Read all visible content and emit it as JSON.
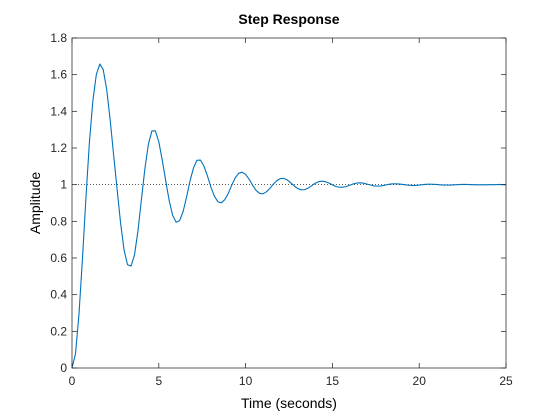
{
  "chart_data": {
    "type": "line",
    "title": "Step Response",
    "xlabel": "Time (seconds)",
    "ylabel": "Amplitude",
    "xlim": [
      0,
      25
    ],
    "ylim": [
      0,
      1.8
    ],
    "xticks": [
      0,
      5,
      10,
      15,
      20,
      25
    ],
    "xtick_labels": [
      "0",
      "5",
      "10",
      "15",
      "20",
      "25"
    ],
    "yticks": [
      0,
      0.2,
      0.4,
      0.6,
      0.8,
      1,
      1.2,
      1.4,
      1.6,
      1.8
    ],
    "ytick_labels": [
      "0",
      "0.2",
      "0.4",
      "0.6",
      "0.8",
      "1",
      "1.2",
      "1.4",
      "1.6",
      "1.8"
    ],
    "grid": false,
    "reference_line": {
      "y": 1,
      "style": "dotted"
    },
    "series": [
      {
        "color": "#0072BD",
        "x": [
          0,
          0.2,
          0.4,
          0.6,
          0.8,
          1.0,
          1.2,
          1.4,
          1.6,
          1.8,
          2.0,
          2.2,
          2.4,
          2.6,
          2.8,
          3.0,
          3.2,
          3.4,
          3.6,
          3.8,
          4.0,
          4.2,
          4.4,
          4.6,
          4.8,
          5.0,
          5.2,
          5.4,
          5.6,
          5.8,
          6.0,
          6.2,
          6.4,
          6.6,
          6.8,
          7.0,
          7.2,
          7.4,
          7.6,
          7.8,
          8.0,
          8.2,
          8.4,
          8.6,
          8.8,
          9.0,
          9.2,
          9.4,
          9.6,
          9.8,
          10.0,
          10.2,
          10.4,
          10.6,
          10.8,
          11.0,
          11.2,
          11.4,
          11.6,
          11.8,
          12.0,
          12.2,
          12.4,
          12.6,
          12.8,
          13.0,
          13.2,
          13.4,
          13.6,
          13.8,
          14.0,
          14.2,
          14.4,
          14.6,
          14.8,
          15.0,
          15.2,
          15.4,
          15.6,
          15.8,
          16.0,
          16.2,
          16.4,
          16.6,
          16.8,
          17.0,
          17.2,
          17.4,
          17.6,
          17.8,
          18.0,
          18.2,
          18.4,
          18.6,
          18.8,
          19.0,
          19.2,
          19.4,
          19.6,
          19.8,
          20.0,
          20.2,
          20.4,
          20.6,
          20.8,
          21.0,
          21.2,
          21.4,
          21.6,
          21.8,
          22.0,
          22.2,
          22.4,
          22.6,
          22.8,
          23.0,
          23.2,
          23.4,
          23.6,
          23.8,
          24.0,
          24.2,
          24.4,
          24.6,
          24.8,
          25.0
        ],
        "y": [
          0,
          0.077,
          0.29,
          0.592,
          0.924,
          1.228,
          1.455,
          1.6,
          1.658,
          1.627,
          1.518,
          1.352,
          1.16,
          0.973,
          0.789,
          0.643,
          0.563,
          0.556,
          0.617,
          0.748,
          0.92,
          1.088,
          1.22,
          1.293,
          1.294,
          1.234,
          1.133,
          1.02,
          0.912,
          0.832,
          0.795,
          0.804,
          0.853,
          0.933,
          1.021,
          1.092,
          1.133,
          1.134,
          1.101,
          1.048,
          0.987,
          0.938,
          0.907,
          0.901,
          0.918,
          0.952,
          0.997,
          1.037,
          1.062,
          1.068,
          1.056,
          1.03,
          0.998,
          0.969,
          0.953,
          0.95,
          0.961,
          0.98,
          1.003,
          1.022,
          1.033,
          1.034,
          1.026,
          1.01,
          0.993,
          0.979,
          0.972,
          0.973,
          0.981,
          0.994,
          1.007,
          1.016,
          1.019,
          1.016,
          1.009,
          0.999,
          0.99,
          0.986,
          0.986,
          0.99,
          0.997,
          1.004,
          1.009,
          1.01,
          1.008,
          1.003,
          0.998,
          0.993,
          0.992,
          0.993,
          0.997,
          1.001,
          1.004,
          1.005,
          1.004,
          1.002,
          0.999,
          0.997,
          0.996,
          0.996,
          0.998,
          1.0,
          1.002,
          1.003,
          1.002,
          1.001,
          0.999,
          0.998,
          0.998,
          0.998,
          0.999,
          1.0,
          1.001,
          1.001,
          1.001,
          1.0,
          1.0,
          0.999,
          0.999,
          0.999,
          1.0,
          1.0,
          1.0,
          1.001,
          1.0,
          1.0
        ]
      }
    ]
  }
}
